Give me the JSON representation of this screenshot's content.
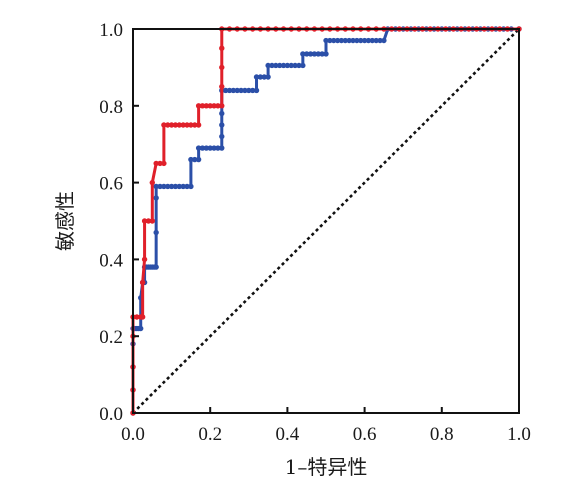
{
  "chart_data": {
    "type": "line",
    "title": "",
    "xlabel": "1–特异性",
    "ylabel": "敏感性",
    "xlim": [
      0,
      1
    ],
    "ylim": [
      0,
      1
    ],
    "x_ticks": [
      "0.0",
      "0.2",
      "0.4",
      "0.6",
      "0.8",
      "1.0"
    ],
    "y_ticks": [
      "0.0",
      "0.2",
      "0.4",
      "0.6",
      "0.8",
      "1.0"
    ],
    "grid": false,
    "legend": "none",
    "reference_line": {
      "x": [
        0,
        1
      ],
      "y": [
        0,
        1
      ],
      "style": "dotted",
      "color": "#111111"
    },
    "series": [
      {
        "color": "#2b4fa8",
        "x": [
          0,
          0,
          0,
          0,
          0,
          0.005,
          0.01,
          0.015,
          0.02,
          0.02,
          0.025,
          0.03,
          0.03,
          0.035,
          0.04,
          0.045,
          0.05,
          0.055,
          0.06,
          0.06,
          0.06,
          0.06,
          0.07,
          0.08,
          0.09,
          0.1,
          0.11,
          0.12,
          0.13,
          0.14,
          0.15,
          0.15,
          0.16,
          0.17,
          0.17,
          0.18,
          0.19,
          0.2,
          0.21,
          0.22,
          0.23,
          0.23,
          0.23,
          0.23,
          0.23,
          0.24,
          0.25,
          0.26,
          0.27,
          0.28,
          0.29,
          0.3,
          0.31,
          0.32,
          0.32,
          0.33,
          0.34,
          0.35,
          0.35,
          0.36,
          0.37,
          0.38,
          0.39,
          0.4,
          0.41,
          0.42,
          0.43,
          0.44,
          0.44,
          0.45,
          0.46,
          0.47,
          0.48,
          0.49,
          0.5,
          0.5,
          0.51,
          0.52,
          0.53,
          0.54,
          0.55,
          0.56,
          0.57,
          0.58,
          0.59,
          0.6,
          0.61,
          0.62,
          0.63,
          0.64,
          0.65,
          0.66,
          0.68,
          0.7,
          0.72,
          0.74,
          0.76,
          0.78,
          0.8,
          0.82,
          0.84,
          0.86,
          0.88,
          0.9,
          0.92,
          0.94,
          0.96,
          0.98,
          1.0
        ],
        "y": [
          0,
          0.06,
          0.12,
          0.18,
          0.22,
          0.22,
          0.22,
          0.22,
          0.22,
          0.3,
          0.34,
          0.34,
          0.38,
          0.38,
          0.38,
          0.38,
          0.38,
          0.38,
          0.38,
          0.47,
          0.56,
          0.59,
          0.59,
          0.59,
          0.59,
          0.59,
          0.59,
          0.59,
          0.59,
          0.59,
          0.59,
          0.66,
          0.66,
          0.66,
          0.69,
          0.69,
          0.69,
          0.69,
          0.69,
          0.69,
          0.69,
          0.72,
          0.75,
          0.78,
          0.84,
          0.84,
          0.84,
          0.84,
          0.84,
          0.84,
          0.84,
          0.84,
          0.84,
          0.84,
          0.875,
          0.875,
          0.875,
          0.875,
          0.905,
          0.905,
          0.905,
          0.905,
          0.905,
          0.905,
          0.905,
          0.905,
          0.905,
          0.905,
          0.935,
          0.935,
          0.935,
          0.935,
          0.935,
          0.935,
          0.935,
          0.97,
          0.97,
          0.97,
          0.97,
          0.97,
          0.97,
          0.97,
          0.97,
          0.97,
          0.97,
          0.97,
          0.97,
          0.97,
          0.97,
          0.97,
          0.97,
          1.0,
          1.0,
          1.0,
          1.0,
          1.0,
          1.0,
          1.0,
          1.0,
          1.0,
          1.0,
          1.0,
          1.0,
          1.0,
          1.0,
          1.0,
          1.0,
          1.0,
          1.0
        ]
      },
      {
        "color": "#e0202a",
        "x": [
          0,
          0,
          0,
          0,
          0,
          0.01,
          0.02,
          0.025,
          0.025,
          0.03,
          0.03,
          0.04,
          0.05,
          0.05,
          0.06,
          0.07,
          0.08,
          0.08,
          0.09,
          0.1,
          0.11,
          0.12,
          0.13,
          0.14,
          0.15,
          0.16,
          0.17,
          0.17,
          0.18,
          0.19,
          0.2,
          0.21,
          0.22,
          0.23,
          0.23,
          0.23,
          0.23,
          0.23,
          0.25,
          0.27,
          0.29,
          0.31,
          0.33,
          0.35,
          0.37,
          0.39,
          0.41,
          0.43,
          0.45,
          0.47,
          0.49,
          0.51,
          0.53,
          0.55,
          0.57,
          0.59,
          0.61,
          0.63,
          0.65,
          0.67,
          0.69,
          0.71,
          0.73,
          0.75,
          0.77,
          0.79,
          0.81,
          0.83,
          0.85,
          0.87,
          0.89,
          0.91,
          0.93,
          0.95,
          0.97,
          1.0
        ],
        "y": [
          0,
          0.06,
          0.12,
          0.2,
          0.25,
          0.25,
          0.25,
          0.25,
          0.34,
          0.4,
          0.5,
          0.5,
          0.5,
          0.6,
          0.65,
          0.65,
          0.65,
          0.75,
          0.75,
          0.75,
          0.75,
          0.75,
          0.75,
          0.75,
          0.75,
          0.75,
          0.75,
          0.8,
          0.8,
          0.8,
          0.8,
          0.8,
          0.8,
          0.8,
          0.85,
          0.9,
          0.95,
          1.0,
          1.0,
          1.0,
          1.0,
          1.0,
          1.0,
          1.0,
          1.0,
          1.0,
          1.0,
          1.0,
          1.0,
          1.0,
          1.0,
          1.0,
          1.0,
          1.0,
          1.0,
          1.0,
          1.0,
          1.0,
          1.0,
          1.0,
          1.0,
          1.0,
          1.0,
          1.0,
          1.0,
          1.0,
          1.0,
          1.0,
          1.0,
          1.0,
          1.0,
          1.0,
          1.0,
          1.0,
          1.0,
          1.0
        ]
      }
    ]
  }
}
